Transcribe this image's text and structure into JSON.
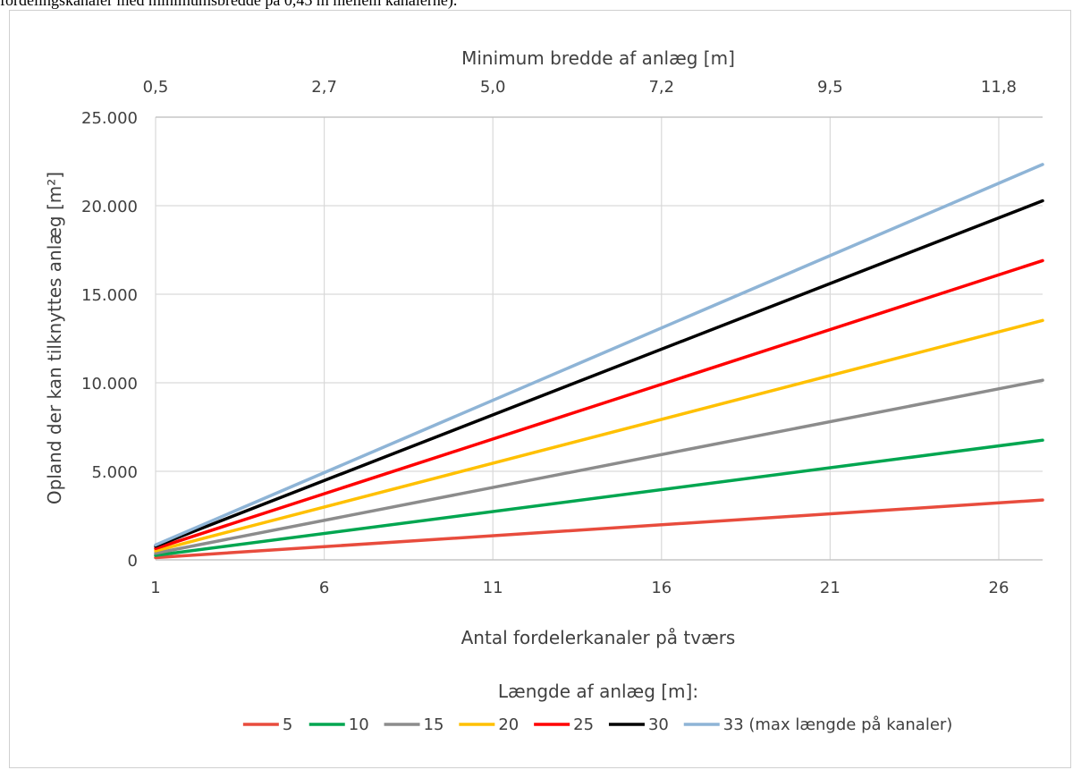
{
  "caption": "fordelingskanaler med minimumsbredde på 0,45 m mellem kanalerne).",
  "chart_data": {
    "type": "line",
    "title": "",
    "xlabel": "Antal fordelerkanaler på tværs",
    "x2label": "Minimum bredde af anlæg [m]",
    "ylabel": "Opland der kan tilknyttes anlæg [m²]",
    "xlim": [
      1,
      27.3
    ],
    "ylim": [
      0,
      25000
    ],
    "xticks": [
      1,
      6,
      11,
      16,
      21,
      26
    ],
    "xtick_labels": [
      "1",
      "6",
      "11",
      "16",
      "21",
      "26"
    ],
    "x2tick_labels": [
      "0,5",
      "2,7",
      "5,0",
      "7,2",
      "9,5",
      "11,8"
    ],
    "yticks": [
      0,
      5000,
      10000,
      15000,
      20000,
      25000
    ],
    "ytick_labels": [
      "0",
      "5.000",
      "10.000",
      "15.000",
      "20.000",
      "25.000"
    ],
    "grid": true,
    "legend_title": "Længde af anlæg [m]:",
    "legend_position": "bottom",
    "x": [
      1,
      27.3
    ],
    "series": [
      {
        "name": "5",
        "color": "#e84c3d",
        "values": [
          125,
          3380
        ]
      },
      {
        "name": "10",
        "color": "#00a650",
        "values": [
          250,
          6760
        ]
      },
      {
        "name": "15",
        "color": "#8c8c8c",
        "values": [
          375,
          10140
        ]
      },
      {
        "name": "20",
        "color": "#ffc000",
        "values": [
          510,
          13520
        ]
      },
      {
        "name": "25",
        "color": "#ff0000",
        "values": [
          640,
          16900
        ]
      },
      {
        "name": "30",
        "color": "#000000",
        "values": [
          770,
          20280
        ]
      },
      {
        "name": "33 (max længde på kanaler)",
        "color": "#8eb4d6",
        "values": [
          840,
          22330
        ]
      }
    ]
  }
}
